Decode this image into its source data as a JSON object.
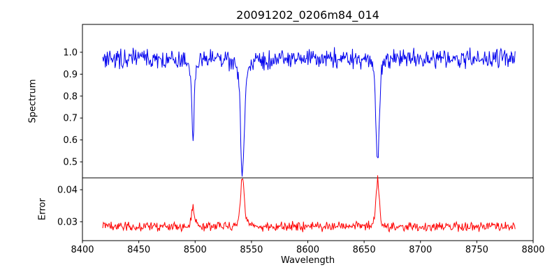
{
  "chart_data": {
    "type": "line",
    "title": "20091202_0206m84_014",
    "xlabel": "Wavelength",
    "xlim": [
      8400,
      8800
    ],
    "x_ticks": [
      8400,
      8450,
      8500,
      8550,
      8600,
      8650,
      8700,
      8750,
      8800
    ],
    "x_tick_labels": [
      "8400",
      "8450",
      "8500",
      "8550",
      "8600",
      "8650",
      "8700",
      "8750",
      "8800"
    ],
    "grid": false,
    "legend": "none",
    "subplots": [
      {
        "ylabel": "Spectrum",
        "ylim": [
          0.427,
          1.127
        ],
        "y_ticks": [
          1.0,
          0.9,
          0.8,
          0.7,
          0.6,
          0.5
        ],
        "y_tick_labels": [
          "1.0",
          "0.9",
          "0.8",
          "0.7",
          "0.6",
          "0.5"
        ],
        "series": [
          {
            "name": "spectrum",
            "color": "#0000ee",
            "continuum_level": 0.97
          }
        ]
      },
      {
        "ylabel": "Error",
        "ylim": [
          0.0241,
          0.0437
        ],
        "y_ticks": [
          0.04,
          0.03
        ],
        "y_tick_labels": [
          "0.04",
          "0.03"
        ],
        "series": [
          {
            "name": "error",
            "color": "#ff0000",
            "baseline_level": 0.0285
          }
        ]
      }
    ],
    "features": [
      {
        "line_center": 8498,
        "spectrum_min": 0.63,
        "error_peak": 0.034
      },
      {
        "line_center": 8542,
        "spectrum_min": 0.46,
        "error_peak": 0.043
      },
      {
        "line_center": 8662,
        "spectrum_min": 0.48,
        "error_peak": 0.043
      }
    ],
    "spectrum_model": {
      "n_points": 640,
      "x_start": 8418,
      "x_end": 8784,
      "continuum": 0.972,
      "noise_halfwidth": 0.055,
      "lines": [
        {
          "center": 8498.0,
          "depth": 0.3,
          "sigma": 1.1,
          "wing_depth": 0.042,
          "wing_sigma": 3.0
        },
        {
          "center": 8542.0,
          "depth": 0.43,
          "sigma": 1.6,
          "wing_depth": 0.08,
          "wing_sigma": 6.0
        },
        {
          "center": 8662.0,
          "depth": 0.43,
          "sigma": 1.4,
          "wing_depth": 0.06,
          "wing_sigma": 5.0
        }
      ]
    },
    "error_model": {
      "baseline": 0.0285,
      "noise_halfwidth": 0.0018,
      "spikes": [
        {
          "center": 8498.0,
          "amp": 0.005,
          "sigma": 1.2,
          "wing_amp": 0.001,
          "wing_sigma": 3.0
        },
        {
          "center": 8542.0,
          "amp": 0.013,
          "sigma": 1.5,
          "wing_amp": 0.002,
          "wing_sigma": 5.0
        },
        {
          "center": 8662.0,
          "amp": 0.013,
          "sigma": 1.4,
          "wing_amp": 0.0015,
          "wing_sigma": 4.0
        }
      ]
    }
  }
}
